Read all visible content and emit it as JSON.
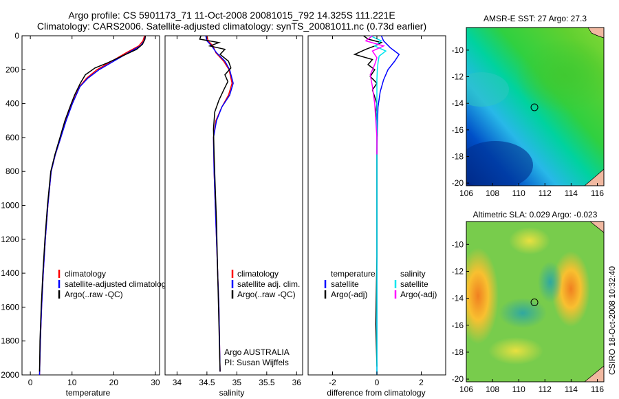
{
  "header": {
    "line1": "Argo profile: CS 5901173_71 11-Oct-2008 20081015_792 14.325S 111.221E",
    "line2": "Climatology: CARS2006. Satellite-adjusted climatology: synTS_20081011.nc (0.73d earlier)"
  },
  "colors": {
    "red": "#ff0000",
    "blue": "#0000ff",
    "black": "#000000",
    "cyan": "#00e5ee",
    "magenta": "#ff00ff"
  },
  "chart_data": [
    {
      "type": "line",
      "panel": "temperature",
      "xlabel": "temperature",
      "ylabel": "",
      "xlim": [
        -2,
        31
      ],
      "ylim": [
        2000,
        0
      ],
      "xticks": [
        "0",
        "10",
        "20",
        "30"
      ],
      "xtick_values": [
        0,
        10,
        20,
        30
      ],
      "yticks": [
        "0",
        "200",
        "400",
        "600",
        "800",
        "1000",
        "1200",
        "1400",
        "1600",
        "1800",
        "2000"
      ],
      "ytick_values": [
        0,
        200,
        400,
        600,
        800,
        1000,
        1200,
        1400,
        1600,
        1800,
        2000
      ],
      "legend": [
        {
          "label": "climatology",
          "color": "#ff0000"
        },
        {
          "label": "satellite-adjusted climatology",
          "color": "#0000ff"
        },
        {
          "label": "Argo(..raw -QC)",
          "color": "#000000"
        }
      ],
      "series": [
        {
          "name": "climatology",
          "color": "#ff0000",
          "x": [
            27.4,
            27.0,
            26.0,
            23.0,
            19.5,
            16.0,
            13.5,
            11.8,
            10.0,
            8.5,
            7.3,
            6.0,
            5.0,
            4.2,
            3.6,
            3.1,
            2.7,
            2.4,
            2.2
          ],
          "y": [
            0,
            30,
            60,
            100,
            150,
            200,
            250,
            300,
            400,
            500,
            600,
            700,
            800,
            1000,
            1200,
            1400,
            1600,
            1800,
            2000
          ]
        },
        {
          "name": "satellite-adjusted climatology",
          "color": "#0000ff",
          "x": [
            27.6,
            27.3,
            26.4,
            23.5,
            20.0,
            16.5,
            13.8,
            11.9,
            10.1,
            8.6,
            7.3,
            6.0,
            5.0,
            4.2,
            3.6,
            3.1,
            2.7,
            2.4,
            2.2
          ],
          "y": [
            0,
            30,
            60,
            100,
            150,
            200,
            250,
            300,
            400,
            500,
            600,
            700,
            800,
            1000,
            1200,
            1400,
            1600,
            1800,
            2000
          ]
        },
        {
          "name": "Argo(..raw -QC)",
          "color": "#000000",
          "x": [
            27.6,
            27.5,
            26.9,
            25.5,
            22.0,
            18.5,
            15.5,
            13.2,
            12.0,
            10.6,
            9.5,
            8.3,
            7.1,
            5.9,
            4.9,
            4.1,
            3.5,
            3.0,
            2.6,
            2.3,
            2.2
          ],
          "y": [
            0,
            20,
            50,
            80,
            120,
            160,
            190,
            230,
            280,
            350,
            420,
            500,
            600,
            700,
            800,
            1000,
            1200,
            1400,
            1600,
            1800,
            1980
          ]
        }
      ]
    },
    {
      "type": "line",
      "panel": "salinity",
      "xlabel": "salinity",
      "xlim": [
        33.8,
        36.1
      ],
      "ylim": [
        2000,
        0
      ],
      "xticks": [
        "34",
        "34.5",
        "35",
        "35.5",
        "36"
      ],
      "xtick_values": [
        34,
        34.5,
        35,
        35.5,
        36
      ],
      "legend": [
        {
          "label": "climatology",
          "color": "#ff0000"
        },
        {
          "label": "satellite adj. clim.",
          "color": "#0000ff"
        },
        {
          "label": "Argo(..raw -QC)",
          "color": "#000000"
        }
      ],
      "annotation": [
        "Argo AUSTRALIA",
        "PI: Susan Wijffels"
      ],
      "series": [
        {
          "name": "climatology",
          "color": "#ff0000",
          "x": [
            34.5,
            34.52,
            34.6,
            34.65,
            34.78,
            34.87,
            34.92,
            34.86,
            34.75,
            34.65,
            34.61,
            34.62,
            34.64,
            34.66,
            34.68,
            34.7,
            34.72
          ],
          "y": [
            0,
            30,
            60,
            100,
            150,
            200,
            280,
            350,
            420,
            500,
            600,
            800,
            1000,
            1200,
            1400,
            1600,
            1980
          ]
        },
        {
          "name": "satellite adj. clim.",
          "color": "#0000ff",
          "x": [
            34.48,
            34.5,
            34.58,
            34.66,
            34.8,
            34.88,
            34.94,
            34.88,
            34.75,
            34.66,
            34.61,
            34.62,
            34.64,
            34.66,
            34.68,
            34.7,
            34.72
          ],
          "y": [
            0,
            30,
            60,
            100,
            150,
            200,
            280,
            350,
            420,
            500,
            600,
            800,
            1000,
            1200,
            1400,
            1600,
            1980
          ]
        },
        {
          "name": "Argo(..raw -QC)",
          "color": "#000000",
          "x": [
            34.4,
            34.38,
            34.7,
            34.55,
            34.8,
            34.72,
            34.86,
            34.9,
            34.8,
            34.85,
            34.78,
            34.7,
            34.63,
            34.61,
            34.62,
            34.64,
            34.66,
            34.68,
            34.7,
            34.72
          ],
          "y": [
            0,
            20,
            40,
            60,
            80,
            110,
            150,
            190,
            230,
            270,
            320,
            380,
            450,
            550,
            700,
            900,
            1100,
            1400,
            1700,
            1980
          ]
        }
      ]
    },
    {
      "type": "line",
      "panel": "difference",
      "xlabel": "difference from climatology",
      "xlim": [
        -3.1,
        3.1
      ],
      "ylim": [
        2000,
        0
      ],
      "xticks": [
        "-2",
        "0",
        "2"
      ],
      "xtick_values": [
        -2,
        0,
        2
      ],
      "legend_columns": [
        {
          "heading": "temperature",
          "items": [
            {
              "label": "satellite",
              "color": "#0000ff"
            },
            {
              "label": "Argo(-adj)",
              "color": "#000000"
            }
          ]
        },
        {
          "heading": "salinity",
          "items": [
            {
              "label": "satellite",
              "color": "#00e5ee"
            },
            {
              "label": "Argo(-adj)",
              "color": "#ff00ff"
            }
          ]
        }
      ],
      "series": [
        {
          "name": "temperature satellite",
          "color": "#0000ff",
          "x": [
            0.2,
            0.3,
            0.6,
            1.0,
            0.8,
            0.5,
            0.3,
            0.15,
            0.05,
            0.02,
            0.0,
            0.0,
            0.0,
            0.0,
            0.0,
            0.0
          ],
          "y": [
            0,
            30,
            70,
            110,
            150,
            200,
            260,
            330,
            420,
            550,
            700,
            900,
            1200,
            1500,
            1800,
            2000
          ]
        },
        {
          "name": "temperature Argo(-adj)",
          "color": "#000000",
          "x": [
            -0.6,
            -0.4,
            0.2,
            -0.1,
            -0.5,
            -1.0,
            -0.2,
            -0.4,
            -0.1,
            -0.3,
            0.0,
            -0.2,
            -0.1,
            0.0,
            -0.05,
            0.0,
            0.0,
            0.0,
            0.0,
            -0.05,
            0.0
          ],
          "y": [
            0,
            20,
            40,
            60,
            80,
            110,
            140,
            170,
            200,
            240,
            280,
            320,
            360,
            400,
            450,
            500,
            650,
            900,
            1300,
            1700,
            1950
          ]
        },
        {
          "name": "salinity satellite",
          "color": "#00e5ee",
          "x": [
            -0.3,
            0.2,
            -0.1,
            0.4,
            0.1,
            0.05,
            0.02,
            0.0,
            0.0,
            0.0,
            0.0,
            0.0,
            0.0,
            0.0
          ],
          "y": [
            0,
            30,
            60,
            90,
            120,
            160,
            200,
            260,
            350,
            500,
            800,
            1200,
            1600,
            2000
          ]
        },
        {
          "name": "salinity Argo(-adj)",
          "color": "#ff00ff",
          "x": [
            -0.2,
            -0.5,
            0.3,
            -0.2,
            0.0,
            -0.1,
            -0.3,
            -0.2,
            -0.1,
            -0.05,
            0.0,
            0.0
          ],
          "y": [
            0,
            30,
            60,
            90,
            130,
            170,
            230,
            300,
            400,
            500,
            600,
            700
          ]
        }
      ]
    },
    {
      "type": "heatmap",
      "panel": "sst_map",
      "title": "AMSR-E SST: 27 Argo: 27.3",
      "xlim": [
        106,
        116.5
      ],
      "ylim": [
        -20.2,
        -8.3
      ],
      "xticks": [
        "106",
        "108",
        "110",
        "112",
        "114",
        "116"
      ],
      "xtick_values": [
        106,
        108,
        110,
        112,
        114,
        116
      ],
      "yticks": [
        "-10",
        "-12",
        "-14",
        "-16",
        "-18",
        "-20"
      ],
      "ytick_values": [
        -10,
        -12,
        -14,
        -16,
        -18,
        -20
      ],
      "marker": {
        "lon": 111.2,
        "lat": -14.3
      }
    },
    {
      "type": "heatmap",
      "panel": "sla_map",
      "title": "Altimetric SLA: 0.029 Argo: -0.023",
      "xlim": [
        106,
        116.5
      ],
      "ylim": [
        -20.2,
        -8.3
      ],
      "xticks": [
        "106",
        "108",
        "110",
        "112",
        "114",
        "116"
      ],
      "xtick_values": [
        106,
        108,
        110,
        112,
        114,
        116
      ],
      "yticks": [
        "-10",
        "-12",
        "-14",
        "-16",
        "-18",
        "-20"
      ],
      "ytick_values": [
        -10,
        -12,
        -14,
        -16,
        -18,
        -20
      ],
      "marker": {
        "lon": 111.2,
        "lat": -14.3
      }
    }
  ],
  "side_label": "CSIRO 18-Oct-2008 10:32:40"
}
